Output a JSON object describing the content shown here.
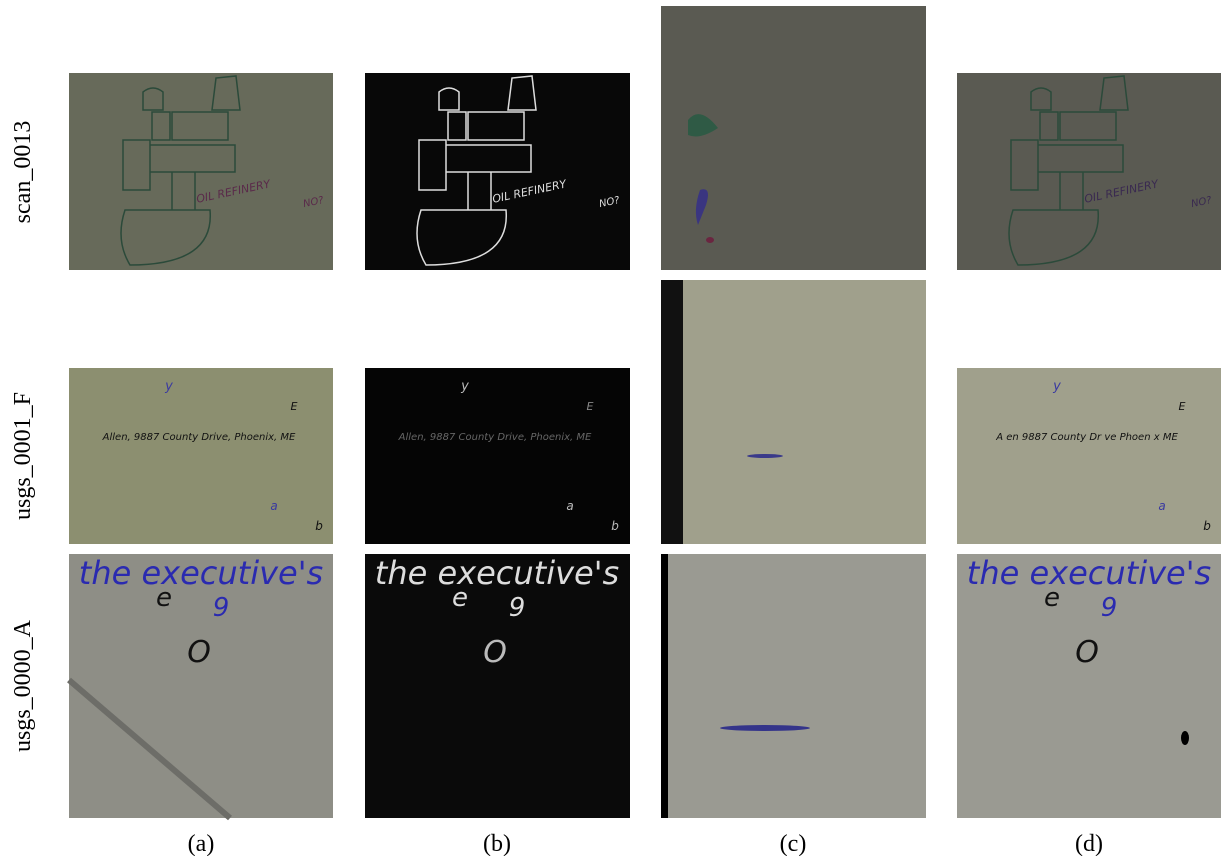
{
  "row_labels": [
    "scan_0013",
    "usgs_0001_F",
    "usgs_0000_A"
  ],
  "column_labels": [
    "(a)",
    "(b)",
    "(c)",
    "(d)"
  ],
  "panel_texts": [
    {
      "a": [
        "OIL REFINERY",
        "NO?"
      ],
      "b": [
        "OIL REFINERY",
        "NO?"
      ],
      "d": [
        "OIL REFINERY",
        "NO?"
      ]
    },
    {
      "a": [
        "y",
        "E",
        "Allen, 9887 County Drive, Phoenix, ME",
        "a",
        "b"
      ],
      "b": [
        "y",
        "E",
        "Allen, 9887 County Drive, Phoenix, ME",
        "a",
        "b"
      ],
      "d": [
        "y",
        "E",
        "A en 9887 County Dr ve Phoen x ME",
        "a",
        "b"
      ]
    },
    {
      "a": [
        "the executive's",
        "e",
        "9",
        "O"
      ],
      "b": [
        "the executive's",
        "e",
        "9",
        "O"
      ],
      "d": [
        "the executive's",
        "e",
        "9",
        "O"
      ]
    }
  ]
}
